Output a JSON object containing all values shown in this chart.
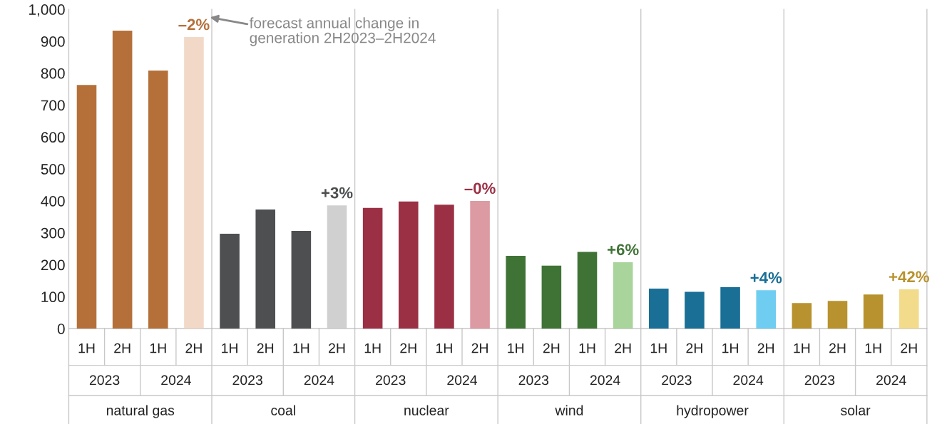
{
  "chart_data": {
    "type": "bar",
    "categories": [
      "1H",
      "2H",
      "1H",
      "2H",
      "1H",
      "2H",
      "1H",
      "2H",
      "1H",
      "2H",
      "1H",
      "2H",
      "1H",
      "2H",
      "1H",
      "2H",
      "1H",
      "2H",
      "1H",
      "2H",
      "1H",
      "2H",
      "1H",
      "2H"
    ],
    "values": [
      763,
      933,
      808,
      913,
      297,
      373,
      306,
      386,
      378,
      398,
      388,
      400,
      228,
      197,
      240,
      208,
      125,
      115,
      130,
      120,
      80,
      87,
      107,
      123
    ],
    "colors": [
      "#b5703a",
      "#b5703a",
      "#b5703a",
      "#f2d9c7",
      "#4d4f51",
      "#4d4f51",
      "#4d4f51",
      "#d0d0d0",
      "#9b3045",
      "#9b3045",
      "#9b3045",
      "#dc9aa2",
      "#3f7336",
      "#3f7336",
      "#3f7336",
      "#a9d49c",
      "#1a6f96",
      "#1a6f96",
      "#1a6f96",
      "#6fcdf1",
      "#b8922e",
      "#b8922e",
      "#b8922e",
      "#f2dc8c"
    ],
    "annotations": [
      "2023",
      "2024",
      "2023",
      "2024",
      "2023",
      "2024",
      "2023",
      "2024",
      "2023",
      "2024",
      "2023",
      "2024",
      "natural gas",
      "coal",
      "nuclear",
      "wind",
      "hydropower",
      "solar",
      "–2%",
      "+3%",
      "–0%",
      "+6%",
      "+4%",
      "+42%",
      "forecast annual change in\ngeneration 2H2023–2H2024"
    ],
    "ylim": [
      0,
      1000
    ],
    "yticks": [
      0,
      100,
      200,
      300,
      400,
      500,
      600,
      700,
      800,
      900,
      {
        "value": 1000,
        "label": "1,000"
      }
    ],
    "grid": false
  }
}
